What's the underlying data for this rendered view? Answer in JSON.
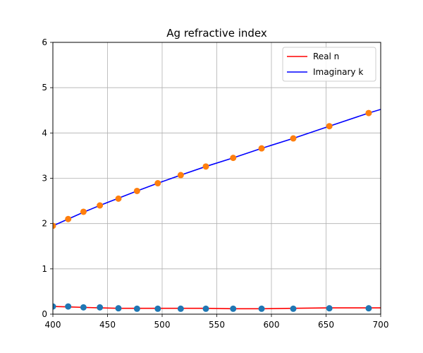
{
  "chart_data": {
    "type": "line",
    "title": "Ag refractive index",
    "xlabel": "",
    "ylabel": "",
    "xlim": [
      400,
      700
    ],
    "ylim": [
      0,
      6
    ],
    "xticks": [
      400,
      450,
      500,
      550,
      600,
      650,
      700
    ],
    "yticks": [
      0,
      1,
      2,
      3,
      4,
      5,
      6
    ],
    "xtick_labels": [
      "400",
      "450",
      "500",
      "550",
      "600",
      "650",
      "700"
    ],
    "ytick_labels": [
      "0",
      "1",
      "2",
      "3",
      "4",
      "5",
      "6"
    ],
    "grid": true,
    "legend_position": "top-right",
    "series": [
      {
        "name": "Real n",
        "kind": "line",
        "color": "#ff0000",
        "x": [
          400,
          414,
          428,
          443,
          460,
          477,
          496,
          517,
          540,
          565,
          591,
          620,
          653,
          689,
          700
        ],
        "y": [
          0.17,
          0.16,
          0.15,
          0.14,
          0.13,
          0.13,
          0.13,
          0.13,
          0.13,
          0.12,
          0.12,
          0.13,
          0.14,
          0.14,
          0.14
        ]
      },
      {
        "name": "Imaginary k",
        "kind": "line",
        "color": "#0000ff",
        "x": [
          400,
          414,
          428,
          443,
          460,
          477,
          496,
          517,
          540,
          565,
          591,
          620,
          653,
          689,
          700
        ],
        "y": [
          1.95,
          2.1,
          2.25,
          2.4,
          2.56,
          2.72,
          2.89,
          3.07,
          3.26,
          3.45,
          3.66,
          3.88,
          4.15,
          4.44,
          4.52
        ]
      },
      {
        "kind": "scatter",
        "color": "#1f77b4",
        "x": [
          400,
          414,
          428,
          443,
          460,
          477,
          496,
          517,
          540,
          565,
          591,
          620,
          653,
          689
        ],
        "y": [
          0.17,
          0.17,
          0.15,
          0.15,
          0.13,
          0.12,
          0.12,
          0.12,
          0.12,
          0.12,
          0.12,
          0.12,
          0.13,
          0.13
        ]
      },
      {
        "kind": "scatter",
        "color": "#ff7f0e",
        "x": [
          400,
          414,
          428,
          443,
          460,
          477,
          496,
          517,
          540,
          565,
          591,
          620,
          653,
          689
        ],
        "y": [
          1.95,
          2.1,
          2.26,
          2.4,
          2.55,
          2.72,
          2.89,
          3.07,
          3.26,
          3.45,
          3.66,
          3.88,
          4.15,
          4.44
        ]
      }
    ]
  }
}
